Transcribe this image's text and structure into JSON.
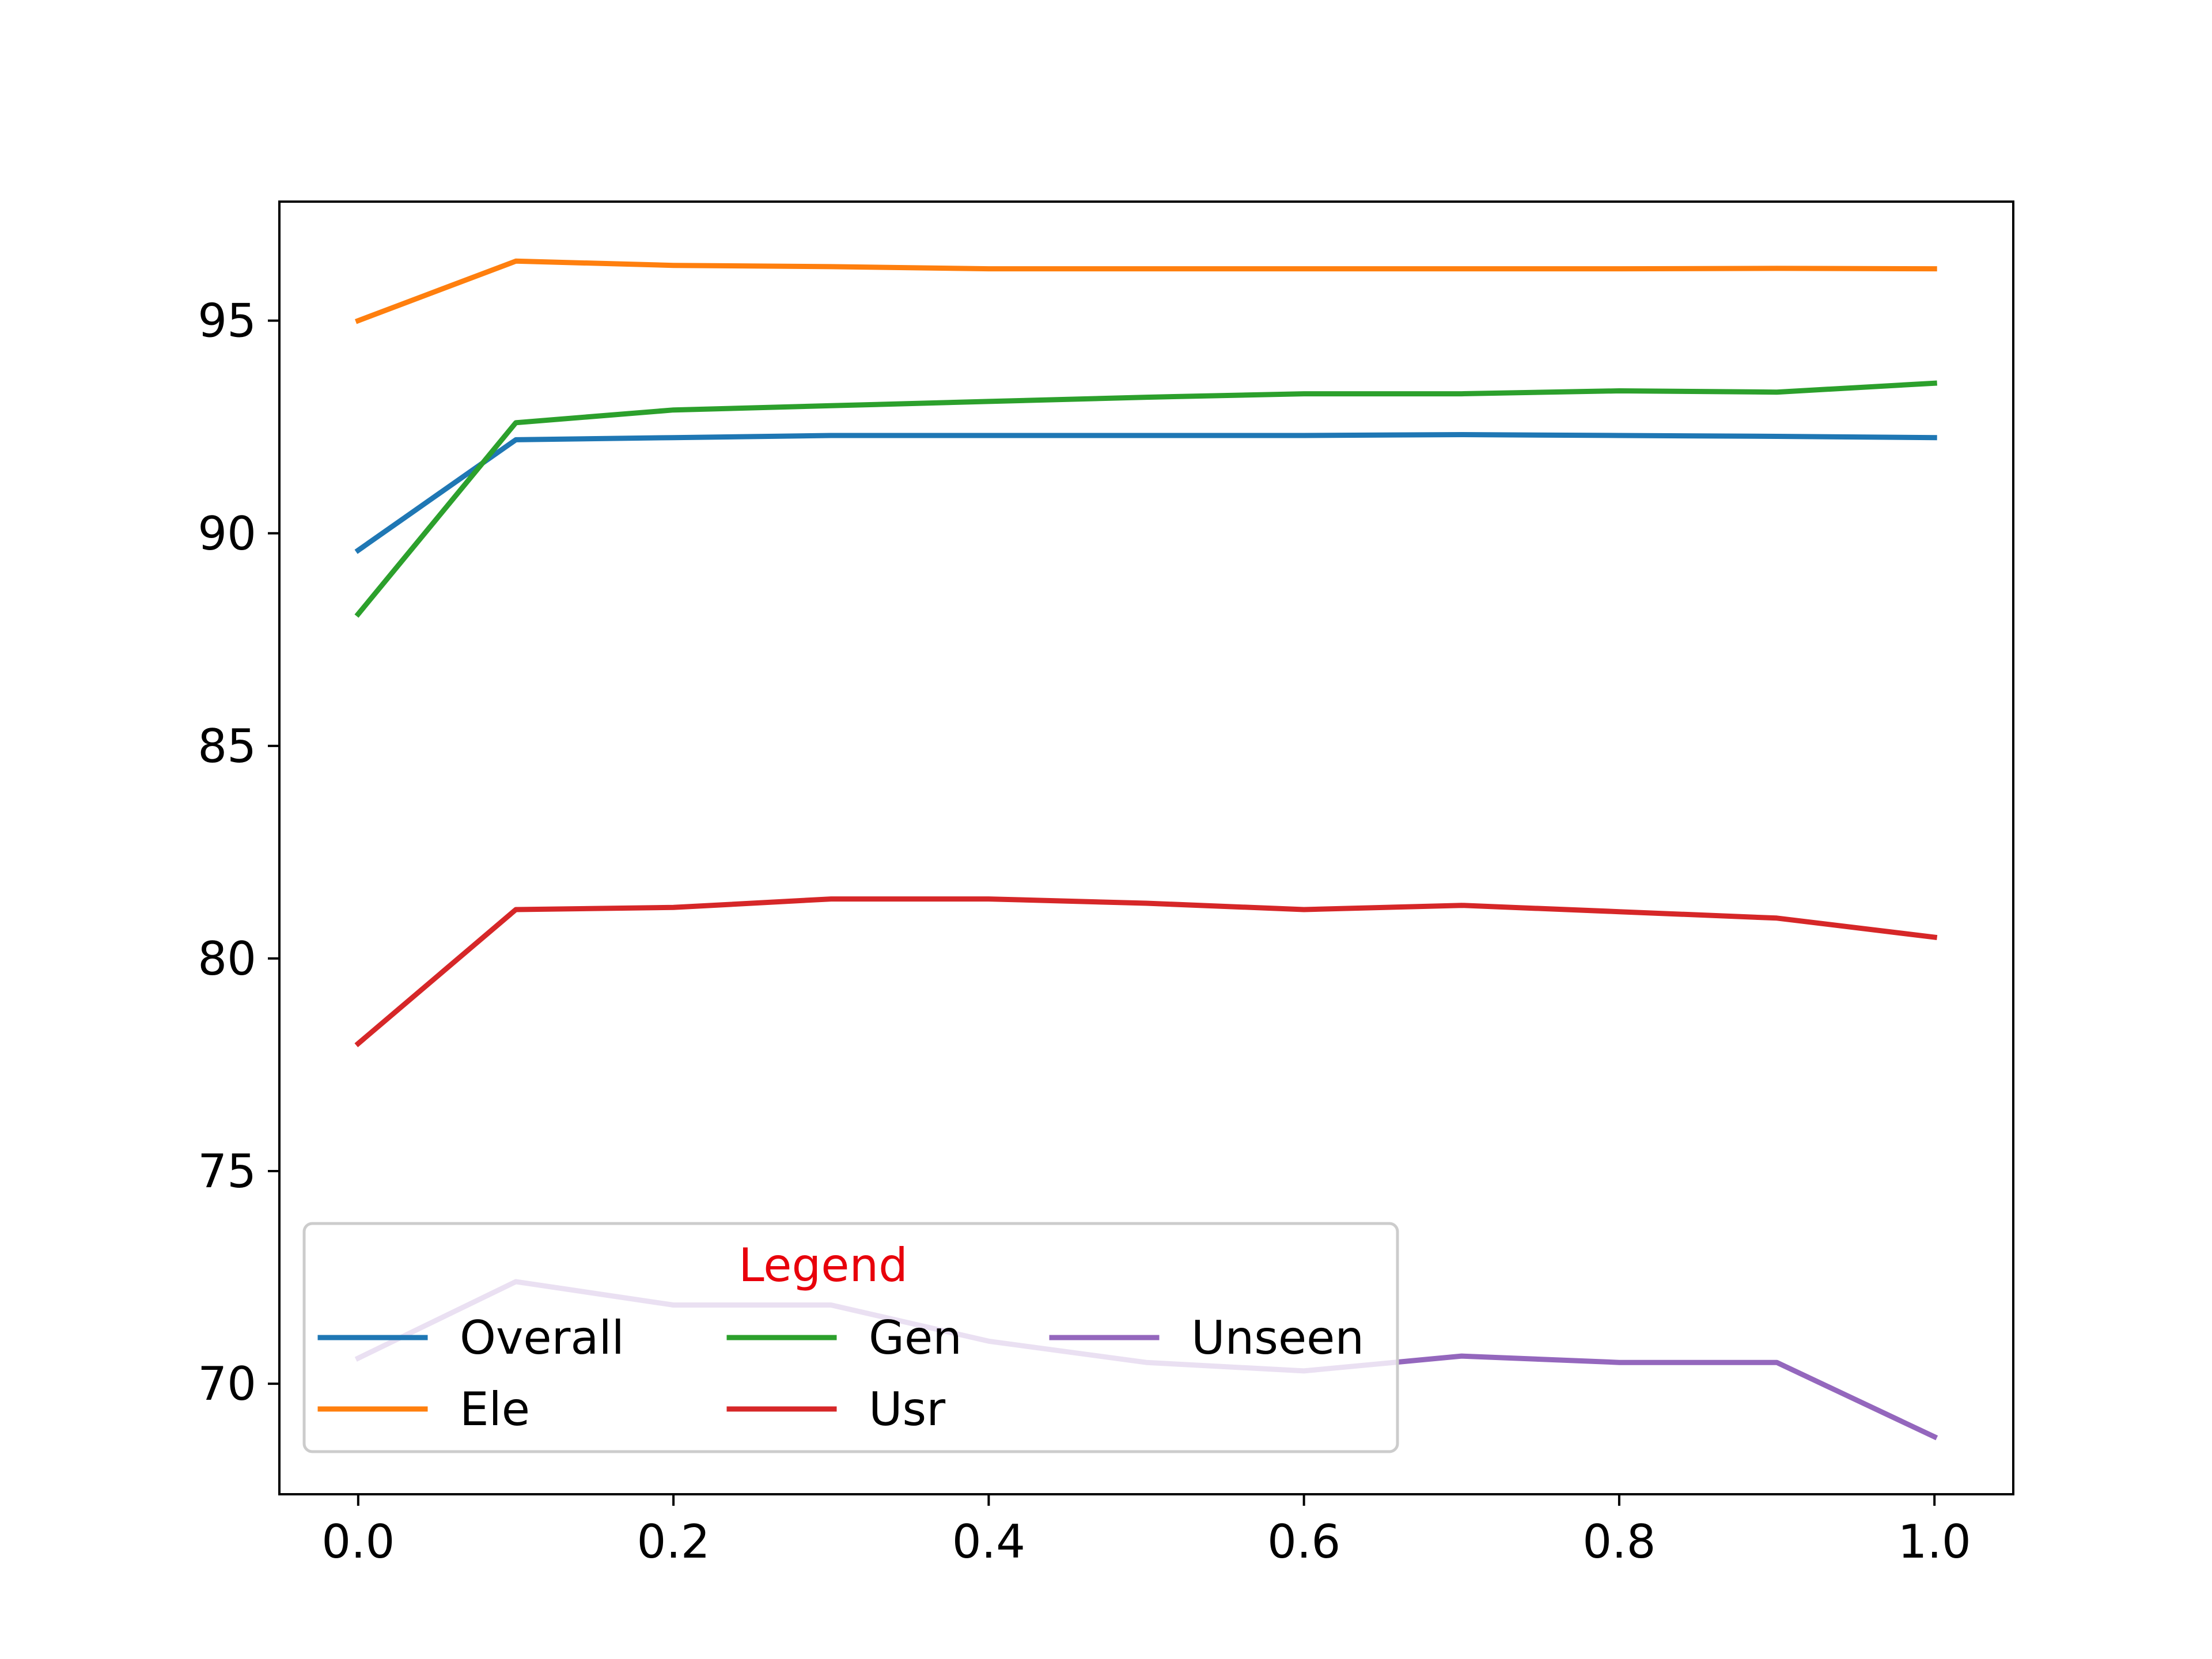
{
  "chart_data": {
    "type": "line",
    "title": "",
    "xlabel": "",
    "ylabel": "",
    "x": [
      0.0,
      0.1,
      0.2,
      0.3,
      0.4,
      0.5,
      0.6,
      0.7,
      0.8,
      0.9,
      1.0
    ],
    "xlim": [
      -0.05,
      1.05
    ],
    "ylim": [
      67.4,
      97.8
    ],
    "x_ticks": [
      "0.0",
      "0.2",
      "0.4",
      "0.6",
      "0.8",
      "1.0"
    ],
    "y_ticks": [
      "70",
      "75",
      "80",
      "85",
      "90",
      "95"
    ],
    "grid": false,
    "legend": {
      "title": "Legend",
      "title_color": "#e8000b",
      "placement": "lower-left",
      "columns": 3
    },
    "series": [
      {
        "name": "Overall",
        "color": "#1f77b4",
        "values": [
          89.6,
          92.2,
          92.25,
          92.3,
          92.3,
          92.3,
          92.3,
          92.32,
          92.3,
          92.28,
          92.25
        ]
      },
      {
        "name": "Ele",
        "color": "#ff7f0e",
        "values": [
          95.0,
          96.4,
          96.3,
          96.27,
          96.22,
          96.22,
          96.22,
          96.22,
          96.22,
          96.23,
          96.22
        ]
      },
      {
        "name": "Gen",
        "color": "#2ca02c",
        "values": [
          88.1,
          92.6,
          92.9,
          93.0,
          93.1,
          93.2,
          93.28,
          93.28,
          93.35,
          93.32,
          93.53
        ]
      },
      {
        "name": "Usr",
        "color": "#d62728",
        "values": [
          78.0,
          81.15,
          81.2,
          81.4,
          81.4,
          81.3,
          81.15,
          81.25,
          81.1,
          80.95,
          80.5
        ]
      },
      {
        "name": "Unseen",
        "color": "#9467bd",
        "values": [
          70.6,
          72.4,
          71.85,
          71.85,
          71.0,
          70.5,
          70.3,
          70.65,
          70.5,
          70.5,
          68.75
        ]
      }
    ]
  }
}
